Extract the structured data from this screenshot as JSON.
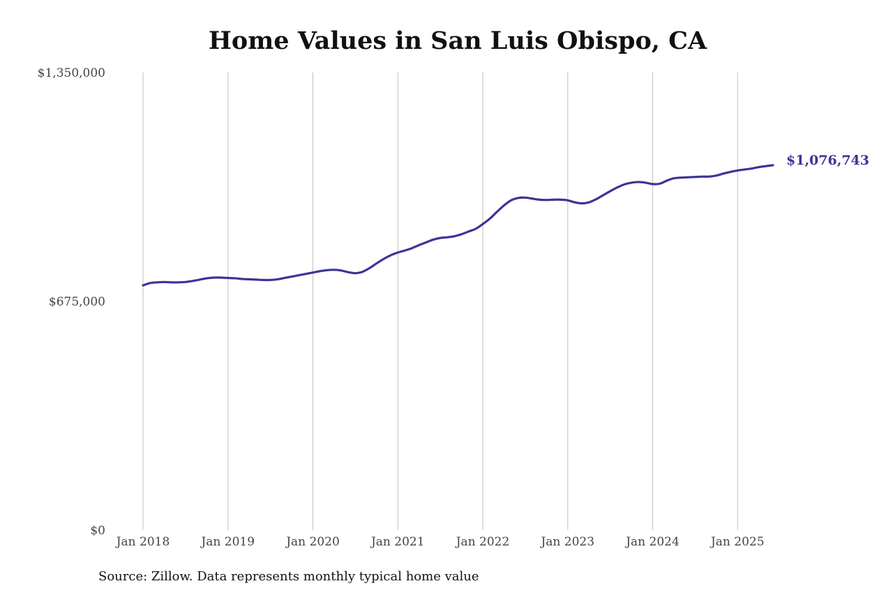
{
  "chart_data": {
    "type": "line",
    "title": "Home Values in San Luis Obispo, CA",
    "xlabel": "",
    "ylabel": "",
    "ylim": [
      0,
      1350000
    ],
    "y_ticks": [
      "$0",
      "$675,000",
      "$1,350,000"
    ],
    "y_tick_values": [
      0,
      675000,
      1350000
    ],
    "x_ticks": [
      "Jan 2018",
      "Jan 2019",
      "Jan 2020",
      "Jan 2021",
      "Jan 2022",
      "Jan 2023",
      "Jan 2024",
      "Jan 2025"
    ],
    "x_tick_values": [
      "2018-01",
      "2019-01",
      "2020-01",
      "2021-01",
      "2022-01",
      "2023-01",
      "2024-01",
      "2025-01"
    ],
    "xlim": [
      "2018-01",
      "2025-06"
    ],
    "grid": "vertical",
    "series": [
      {
        "color": "#3a3596",
        "x": [
          "2018-01",
          "2018-02",
          "2018-03",
          "2018-04",
          "2018-05",
          "2018-06",
          "2018-07",
          "2018-08",
          "2018-09",
          "2018-10",
          "2018-11",
          "2018-12",
          "2019-01",
          "2019-02",
          "2019-03",
          "2019-04",
          "2019-05",
          "2019-06",
          "2019-07",
          "2019-08",
          "2019-09",
          "2019-10",
          "2019-11",
          "2019-12",
          "2020-01",
          "2020-02",
          "2020-03",
          "2020-04",
          "2020-05",
          "2020-06",
          "2020-07",
          "2020-08",
          "2020-09",
          "2020-10",
          "2020-11",
          "2020-12",
          "2021-01",
          "2021-02",
          "2021-03",
          "2021-04",
          "2021-05",
          "2021-06",
          "2021-07",
          "2021-08",
          "2021-09",
          "2021-10",
          "2021-11",
          "2021-12",
          "2022-01",
          "2022-02",
          "2022-03",
          "2022-04",
          "2022-05",
          "2022-06",
          "2022-07",
          "2022-08",
          "2022-09",
          "2022-10",
          "2022-11",
          "2022-12",
          "2023-01",
          "2023-02",
          "2023-03",
          "2023-04",
          "2023-05",
          "2023-06",
          "2023-07",
          "2023-08",
          "2023-09",
          "2023-10",
          "2023-11",
          "2023-12",
          "2024-01",
          "2024-02",
          "2024-03",
          "2024-04",
          "2024-05",
          "2024-06",
          "2024-07",
          "2024-08",
          "2024-09",
          "2024-10",
          "2024-11",
          "2024-12",
          "2025-01",
          "2025-02",
          "2025-03",
          "2025-04",
          "2025-05",
          "2025-06"
        ],
        "values": [
          722000,
          729000,
          731000,
          732000,
          731000,
          731000,
          732000,
          735000,
          739000,
          743000,
          745000,
          745000,
          744000,
          743000,
          741000,
          740000,
          739000,
          738000,
          738000,
          740000,
          744000,
          748000,
          752000,
          756000,
          760000,
          764000,
          767000,
          768000,
          766000,
          761000,
          758000,
          762000,
          773000,
          787000,
          800000,
          811000,
          819000,
          825000,
          832000,
          841000,
          849000,
          857000,
          862000,
          864000,
          867000,
          873000,
          881000,
          889000,
          903000,
          919000,
          939000,
          958000,
          973000,
          980000,
          981000,
          978000,
          975000,
          974000,
          975000,
          975000,
          973000,
          967000,
          964000,
          967000,
          976000,
          988000,
          1000000,
          1011000,
          1020000,
          1025000,
          1027000,
          1025000,
          1021000,
          1022000,
          1031000,
          1038000,
          1040000,
          1041000,
          1042000,
          1043000,
          1043000,
          1046000,
          1052000,
          1057000,
          1061000,
          1064000,
          1067000,
          1071000,
          1074000,
          1076743
        ]
      }
    ],
    "end_label": "$1,076,743",
    "source": "Source: Zillow. Data represents monthly typical home value"
  }
}
